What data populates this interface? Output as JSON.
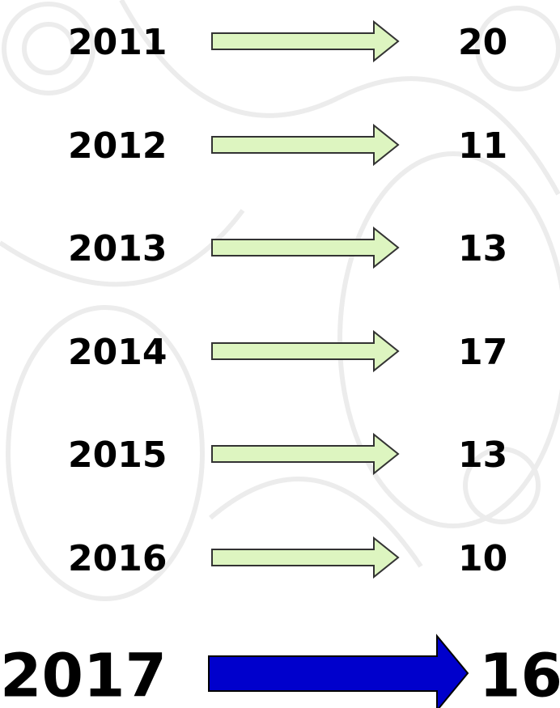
{
  "rows": [
    {
      "year": "2011",
      "value": "20"
    },
    {
      "year": "2012",
      "value": "11"
    },
    {
      "year": "2013",
      "value": "13"
    },
    {
      "year": "2014",
      "value": "17"
    },
    {
      "year": "2015",
      "value": "13"
    },
    {
      "year": "2016",
      "value": "10"
    }
  ],
  "highlight": {
    "year": "2017",
    "value": "16"
  }
}
